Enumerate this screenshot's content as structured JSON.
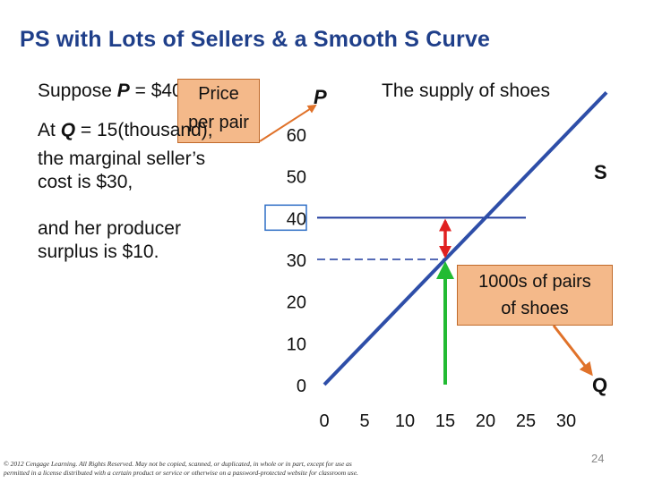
{
  "slide": {
    "title": "PS with Lots of Sellers & a Smooth S Curve",
    "para1_pre": "Suppose ",
    "para1_var": "P",
    "para1_post": " = $40,",
    "para2_pre": "At ",
    "para2_var": "Q",
    "para2_post": " = 15(thousand),",
    "para2_line2": "the marginal seller’s",
    "para2_line3": "cost is $30,",
    "para3_line1": "and her producer",
    "para3_line2": "surplus is $10.",
    "price_callout_line1": "Price",
    "price_callout_line2": "per pair",
    "qty_callout_line1": "1000s of pairs",
    "qty_callout_line2": "of shoes",
    "chart_label_p": "P",
    "chart_label_s": "S",
    "chart_label_q": "Q",
    "chart_subtitle": "The supply of shoes",
    "footer_line1": "© 2012 Cengage Learning. All Rights Reserved. May not be copied, scanned, or duplicated, in whole or in part, except for use as",
    "footer_line2": "permitted in a license distributed with a certain product or service or otherwise on a password-protected website for classroom use.",
    "page_number": "24"
  },
  "colors": {
    "title": "#1f3f8a",
    "supply": "#2e4ea8",
    "price_line": "#1f3a9e",
    "green_arrow": "#22bb33",
    "red_arrow": "#e02020",
    "callout_fill": "#f4b98a",
    "callout_pointer": "#e0722a"
  },
  "chart_data": {
    "type": "line",
    "title": "The supply of shoes",
    "xlabel": "Q",
    "ylabel": "P",
    "xlim": [
      0,
      30
    ],
    "ylim": [
      0,
      60
    ],
    "x_ticks": [
      0,
      5,
      10,
      15,
      20,
      25,
      30
    ],
    "y_ticks": [
      0,
      10,
      20,
      30,
      40,
      50,
      60
    ],
    "series": [
      {
        "name": "S",
        "x": [
          0,
          35
        ],
        "y": [
          0,
          70
        ]
      }
    ],
    "annotations": {
      "price_line": {
        "y": 40,
        "x_end": 25
      },
      "cost_dashed": {
        "y": 30,
        "x_end": 15
      },
      "green_arrow": {
        "x": 15,
        "y_from": 0,
        "y_to": 30
      },
      "red_double_arrow": {
        "x": 15,
        "y_from": 30,
        "y_to": 40
      }
    },
    "grid": false
  }
}
